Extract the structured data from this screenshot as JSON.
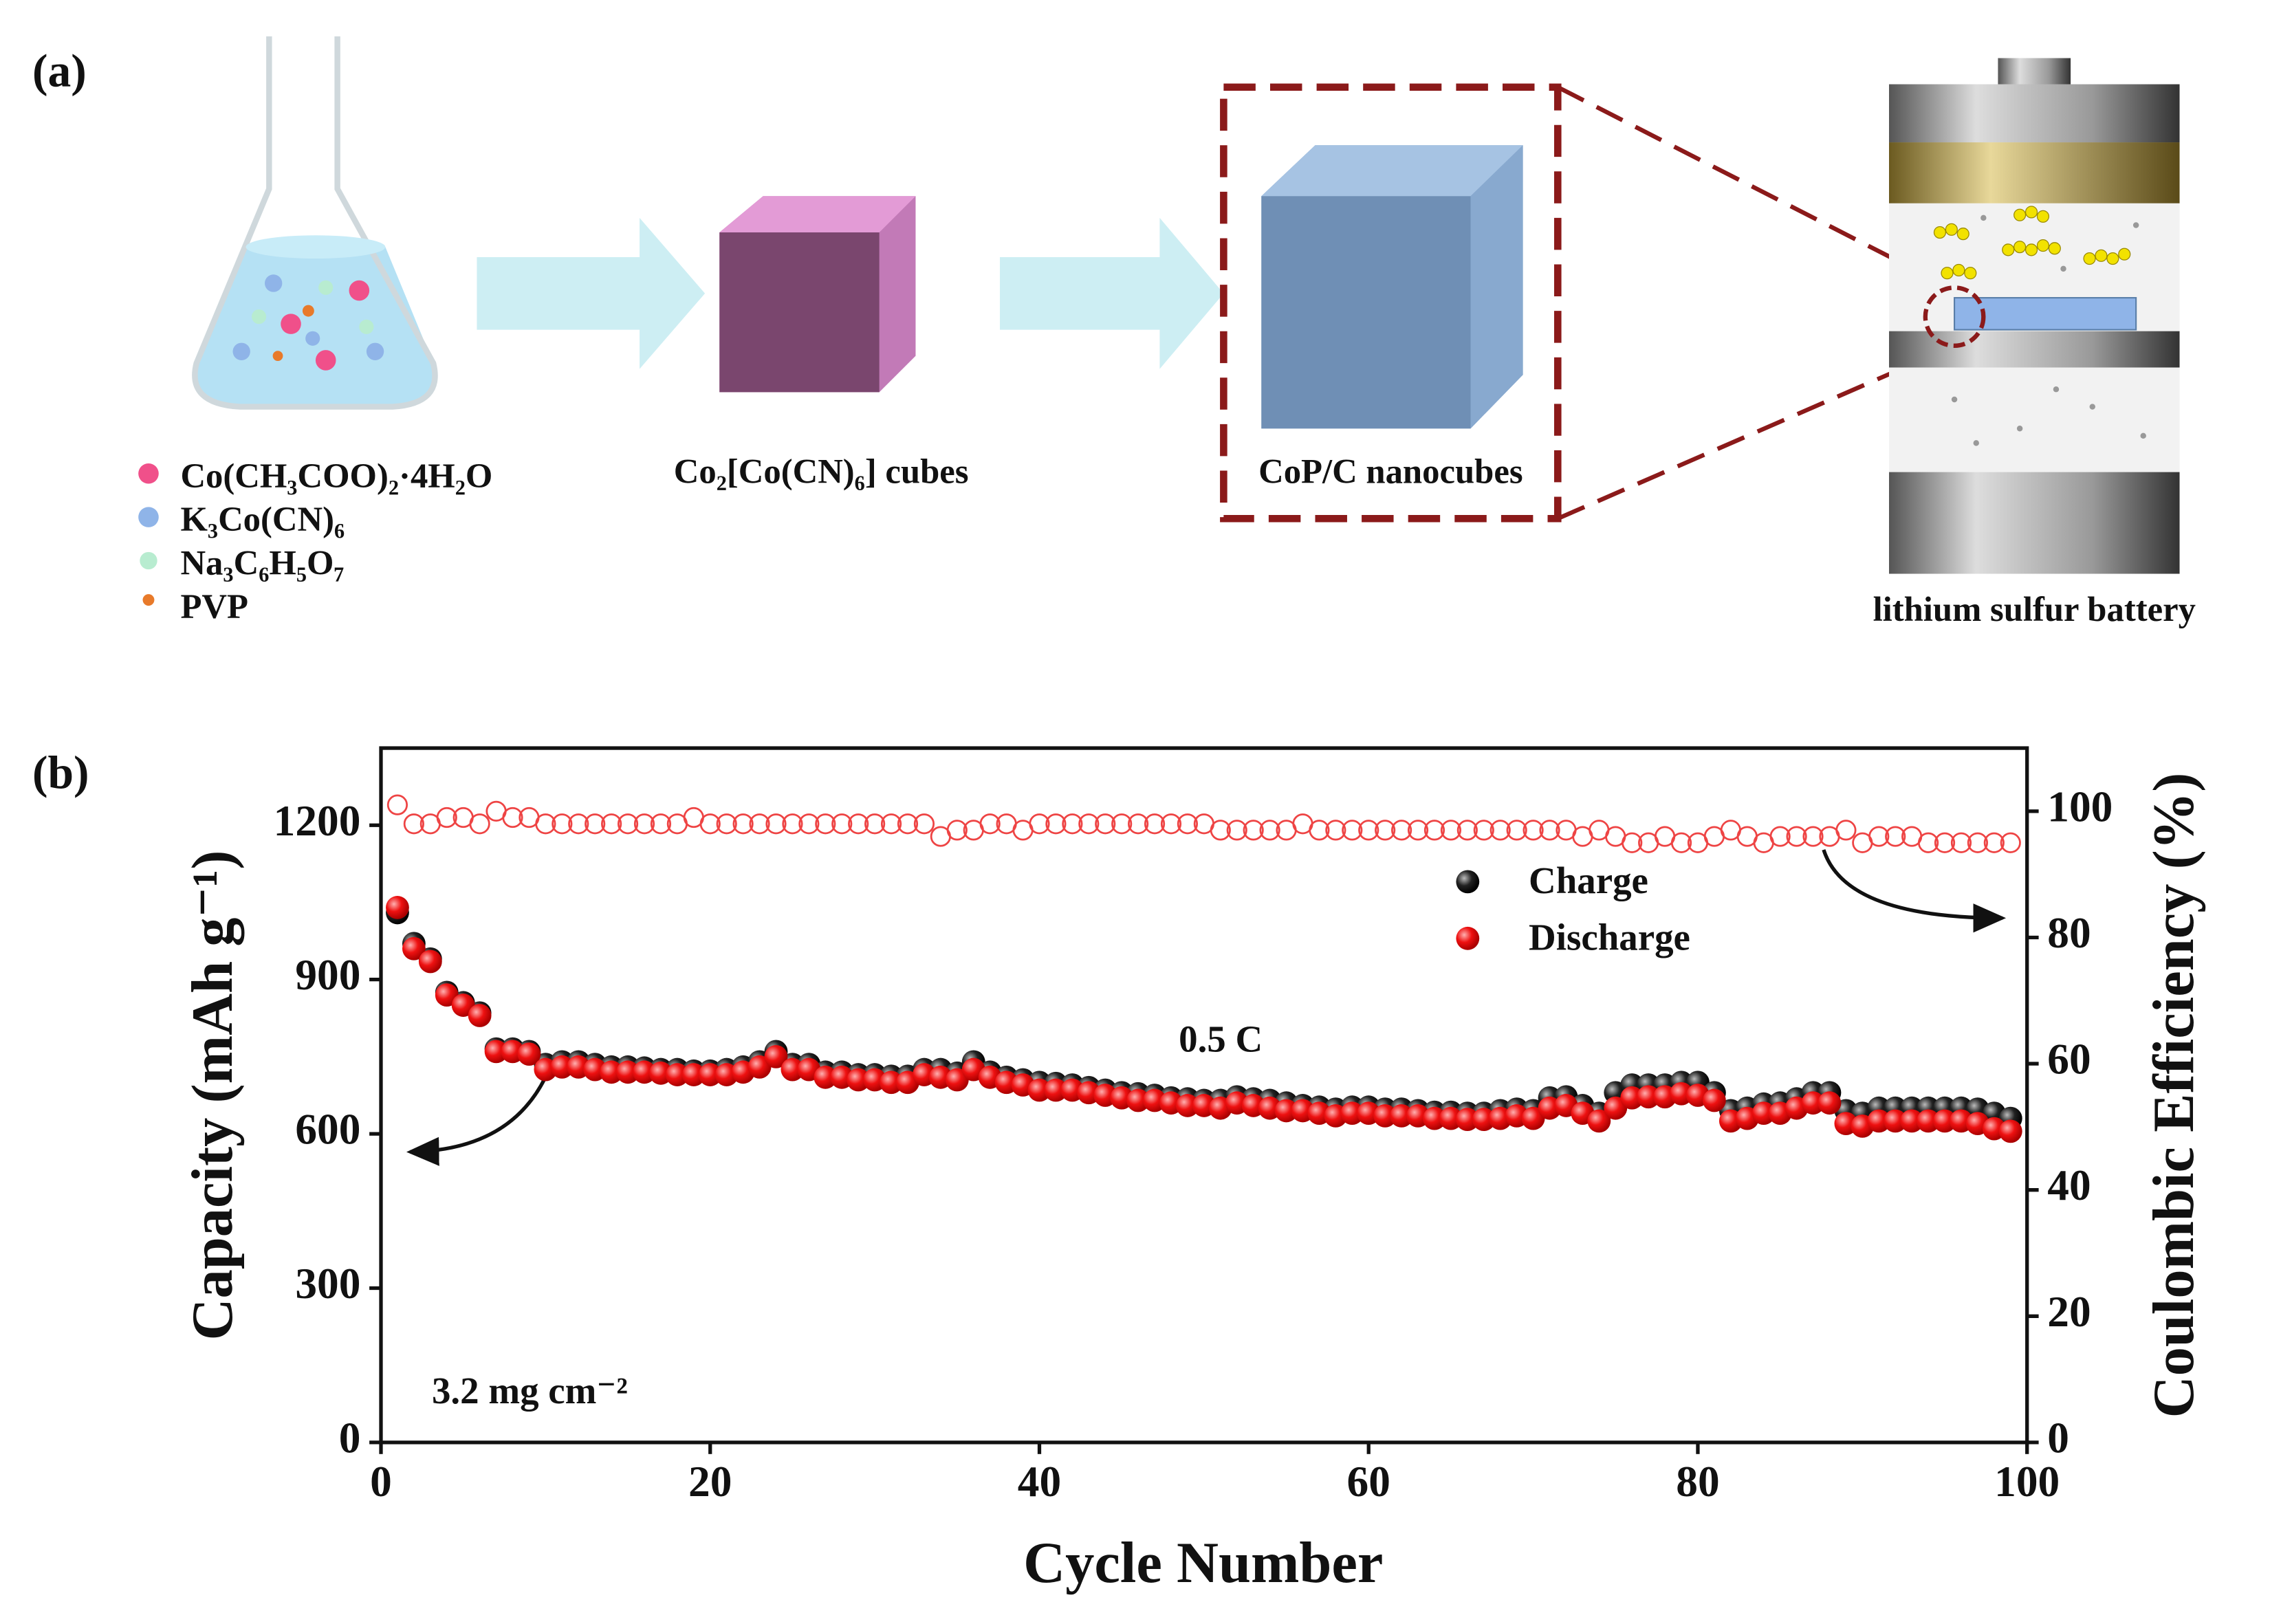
{
  "panel_a": {
    "label": "(a)",
    "reagents": [
      "Co(CH₃COO)₂·4H₂O",
      "K₃Co(CN)₆",
      "Na₃C₆H₅O₇",
      "PVP"
    ],
    "step_1": "Co₂[Co(CN)₆] cubes",
    "step_2": "CoP/C nanocubes",
    "battery": "lithium sulfur battery"
  },
  "panel_b": {
    "label": "(b)"
  },
  "chart_data": {
    "type": "scatter",
    "xlabel": "Cycle Number",
    "ylabel": "Capacity (mAh g⁻¹)",
    "y2label": "Coulombic Efficiency (%)",
    "annotations": [
      "0.5 C",
      "3.2 mg cm⁻²"
    ],
    "x": [
      1,
      2,
      3,
      4,
      5,
      6,
      7,
      8,
      9,
      10,
      11,
      12,
      13,
      14,
      15,
      16,
      17,
      18,
      19,
      20,
      21,
      22,
      23,
      24,
      25,
      26,
      27,
      28,
      29,
      30,
      31,
      32,
      33,
      34,
      35,
      36,
      37,
      38,
      39,
      40,
      41,
      42,
      43,
      44,
      45,
      46,
      47,
      48,
      49,
      50,
      51,
      52,
      53,
      54,
      55,
      56,
      57,
      58,
      59,
      60,
      61,
      62,
      63,
      64,
      65,
      66,
      67,
      68,
      69,
      70,
      71,
      72,
      73,
      74,
      75,
      76,
      77,
      78,
      79,
      80,
      81,
      82,
      83,
      84,
      85,
      86,
      87,
      88,
      89,
      90,
      91,
      92,
      93,
      94,
      95,
      96,
      97,
      98,
      99
    ],
    "xlim": [
      0,
      100
    ],
    "xticks": [
      0,
      20,
      40,
      60,
      80,
      100
    ],
    "ylim": [
      0,
      1350
    ],
    "yticks": [
      0,
      300,
      600,
      900,
      1200
    ],
    "y2lim": [
      0,
      110
    ],
    "y2ticks": [
      0,
      20,
      40,
      60,
      80,
      100
    ],
    "series": [
      {
        "name": "Charge",
        "color": "#111111",
        "values": [
          1030,
          970,
          940,
          875,
          855,
          835,
          765,
          765,
          760,
          735,
          740,
          740,
          735,
          730,
          730,
          728,
          725,
          725,
          722,
          722,
          725,
          730,
          740,
          760,
          735,
          735,
          720,
          720,
          715,
          715,
          712,
          712,
          725,
          725,
          718,
          740,
          720,
          710,
          705,
          700,
          698,
          695,
          690,
          685,
          680,
          678,
          675,
          670,
          668,
          665,
          665,
          672,
          668,
          665,
          660,
          655,
          652,
          648,
          652,
          652,
          648,
          648,
          645,
          642,
          642,
          640,
          640,
          645,
          648,
          645,
          670,
          672,
          655,
          640,
          680,
          695,
          695,
          695,
          700,
          700,
          680,
          645,
          650,
          658,
          660,
          668,
          680,
          680,
          645,
          640,
          650,
          650,
          650,
          650,
          650,
          650,
          648,
          640,
          630
        ]
      },
      {
        "name": "Discharge",
        "color": "#ee1111",
        "values": [
          1040,
          960,
          935,
          870,
          850,
          830,
          760,
          760,
          755,
          725,
          730,
          730,
          725,
          720,
          720,
          720,
          718,
          715,
          715,
          715,
          715,
          720,
          730,
          750,
          725,
          725,
          710,
          710,
          705,
          705,
          700,
          700,
          715,
          710,
          705,
          725,
          710,
          700,
          695,
          685,
          685,
          685,
          680,
          675,
          670,
          665,
          665,
          660,
          655,
          655,
          650,
          660,
          655,
          650,
          645,
          645,
          640,
          635,
          640,
          640,
          635,
          635,
          635,
          630,
          630,
          628,
          628,
          630,
          635,
          630,
          650,
          655,
          640,
          625,
          650,
          670,
          672,
          672,
          678,
          675,
          665,
          625,
          630,
          640,
          640,
          650,
          660,
          660,
          620,
          615,
          625,
          625,
          625,
          625,
          625,
          625,
          620,
          610,
          605
        ]
      },
      {
        "color": "#ee4444",
        "axis": "y2",
        "values": [
          101,
          98,
          98,
          99,
          99,
          98,
          100,
          99,
          99,
          98,
          98,
          98,
          98,
          98,
          98,
          98,
          98,
          98,
          99,
          98,
          98,
          98,
          98,
          98,
          98,
          98,
          98,
          98,
          98,
          98,
          98,
          98,
          98,
          96,
          97,
          97,
          98,
          98,
          97,
          98,
          98,
          98,
          98,
          98,
          98,
          98,
          98,
          98,
          98,
          98,
          97,
          97,
          97,
          97,
          97,
          98,
          97,
          97,
          97,
          97,
          97,
          97,
          97,
          97,
          97,
          97,
          97,
          97,
          97,
          97,
          97,
          97,
          96,
          97,
          96,
          95,
          95,
          96,
          95,
          95,
          96,
          97,
          96,
          95,
          96,
          96,
          96,
          96,
          97,
          95,
          96,
          96,
          96,
          95,
          95,
          95,
          95,
          95,
          95
        ]
      }
    ]
  }
}
